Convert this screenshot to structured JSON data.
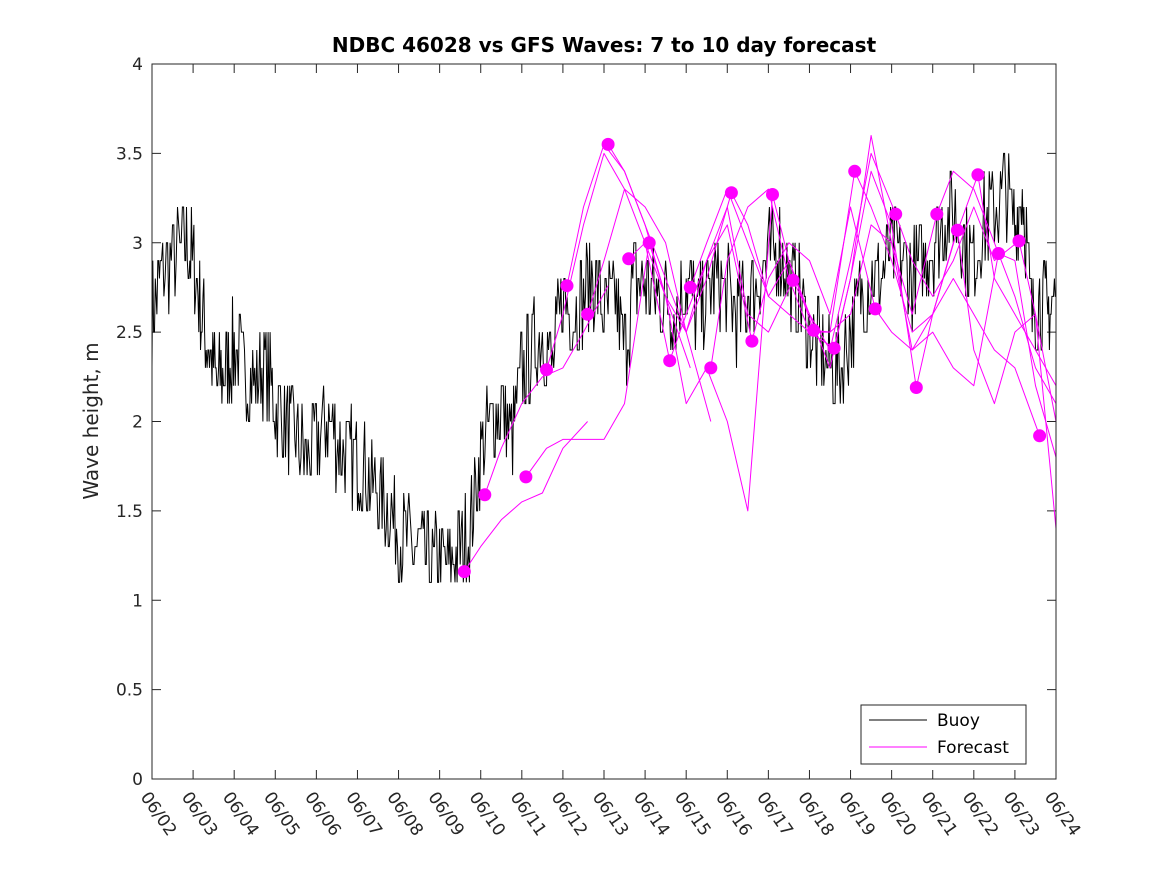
{
  "chart_data": {
    "type": "line",
    "title": "NDBC 46028 vs GFS Waves: 7 to 10 day forecast",
    "xlabel": "",
    "ylabel": "Wave height, m",
    "xlim": [
      0,
      22
    ],
    "ylim": [
      0,
      4
    ],
    "x_tick_labels": [
      "06/02",
      "06/03",
      "06/04",
      "06/05",
      "06/06",
      "06/07",
      "06/08",
      "06/09",
      "06/10",
      "06/11",
      "06/12",
      "06/13",
      "06/14",
      "06/15",
      "06/16",
      "06/17",
      "06/18",
      "06/19",
      "06/20",
      "06/21",
      "06/22",
      "06/23",
      "06/24"
    ],
    "y_ticks": [
      0,
      0.5,
      1,
      1.5,
      2,
      2.5,
      3,
      3.5,
      4
    ],
    "y_tick_labels": [
      "0",
      "0.5",
      "1",
      "1.5",
      "2",
      "2.5",
      "3",
      "3.5",
      "4"
    ],
    "legend_position": "bottom-right",
    "colors": {
      "buoy": "#000000",
      "forecast": "#ff00ff"
    },
    "series": [
      {
        "name": "Buoy",
        "color": "#000000",
        "x": [
          0,
          0.2,
          0.5,
          0.8,
          1.0,
          1.2,
          1.4,
          1.6,
          1.8,
          2.0,
          2.25,
          2.5,
          2.75,
          3.0,
          3.25,
          3.5,
          3.75,
          4.0,
          4.25,
          4.5,
          4.75,
          5.0,
          5.25,
          5.5,
          5.75,
          6.0,
          6.25,
          6.5,
          6.75,
          7.0,
          7.25,
          7.5,
          7.75,
          8.0,
          8.25,
          8.5,
          8.75,
          9.0,
          9.25,
          9.5,
          9.75,
          10.0,
          10.25,
          10.5,
          10.75,
          11.0,
          11.25,
          11.5,
          11.75,
          12.0,
          12.25,
          12.5,
          12.75,
          13.0,
          13.25,
          13.5,
          13.75,
          14.0,
          14.25,
          14.5,
          14.75,
          15.0,
          15.25,
          15.5,
          15.75,
          16.0,
          16.25,
          16.5,
          16.75,
          17.0,
          17.25,
          17.5,
          17.75,
          18.0,
          18.25,
          18.5,
          18.75,
          19.0,
          19.25,
          19.5,
          19.75,
          20.0,
          20.25,
          20.5,
          20.75,
          21.0,
          21.2,
          21.4,
          21.6,
          21.8,
          22.0
        ],
        "values": [
          2.6,
          2.8,
          2.9,
          3.0,
          2.9,
          2.6,
          2.4,
          2.2,
          2.3,
          2.4,
          2.3,
          2.2,
          2.3,
          2.1,
          2.0,
          1.9,
          1.8,
          1.9,
          2.0,
          1.9,
          1.8,
          1.8,
          1.7,
          1.6,
          1.5,
          1.4,
          1.3,
          1.3,
          1.2,
          1.2,
          1.2,
          1.3,
          1.4,
          1.8,
          2.0,
          2.1,
          1.9,
          2.3,
          2.4,
          2.5,
          2.3,
          2.7,
          2.6,
          2.7,
          2.8,
          2.6,
          2.7,
          2.4,
          2.8,
          2.8,
          2.7,
          2.7,
          2.6,
          2.8,
          2.6,
          2.7,
          2.8,
          2.7,
          2.6,
          2.7,
          2.8,
          2.9,
          3.0,
          2.8,
          2.7,
          2.5,
          2.4,
          2.3,
          2.3,
          2.5,
          2.7,
          2.8,
          2.8,
          3.0,
          2.9,
          2.8,
          2.9,
          3.0,
          3.1,
          3.2,
          3.0,
          2.9,
          3.1,
          3.2,
          3.3,
          3.1,
          3.3,
          2.6,
          2.7,
          2.6,
          2.7
        ]
      },
      {
        "name": "Forecast",
        "color": "#ff00ff",
        "lines": [
          {
            "x": [
              7.6,
              8.0,
              8.5,
              9.0,
              9.5,
              10.0,
              10.6
            ],
            "values": [
              1.16,
              1.3,
              1.45,
              1.55,
              1.6,
              1.85,
              2.0
            ]
          },
          {
            "x": [
              8.1,
              8.5,
              9.0,
              9.5,
              10.0,
              10.5,
              11.1
            ],
            "values": [
              1.59,
              1.85,
              2.1,
              2.25,
              2.3,
              2.5,
              2.76
            ]
          },
          {
            "x": [
              9.1,
              9.6,
              10.0,
              10.5,
              11.0,
              11.5,
              12.1
            ],
            "values": [
              1.69,
              1.85,
              1.9,
              1.9,
              1.9,
              2.1,
              3.0
            ]
          },
          {
            "x": [
              9.6,
              10.0,
              10.5,
              11.0,
              11.5,
              12.0,
              12.6
            ],
            "values": [
              2.29,
              2.6,
              3.1,
              3.5,
              3.3,
              3.0,
              2.34
            ]
          },
          {
            "x": [
              10.1,
              10.5,
              11.0,
              11.5,
              12.0,
              12.5,
              13.1
            ],
            "values": [
              2.76,
              3.2,
              3.55,
              3.4,
              3.1,
              2.7,
              2.3
            ]
          },
          {
            "x": [
              10.6,
              11.0,
              11.5,
              12.0,
              12.5,
              13.0,
              13.6
            ],
            "values": [
              2.6,
              2.9,
              3.3,
              3.2,
              3.0,
              2.5,
              2.0
            ]
          },
          {
            "x": [
              11.1,
              11.5,
              12.0,
              12.5,
              13.0,
              13.5,
              14.1
            ],
            "values": [
              3.55,
              3.4,
              3.1,
              2.8,
              2.5,
              2.8,
              3.28
            ]
          },
          {
            "x": [
              11.6,
              12.0,
              12.5,
              13.0,
              13.5,
              14.0,
              14.6
            ],
            "values": [
              2.91,
              3.0,
              2.7,
              2.5,
              2.9,
              3.1,
              2.45
            ]
          },
          {
            "x": [
              12.1,
              12.5,
              13.0,
              13.5,
              14.0,
              14.5,
              15.1
            ],
            "values": [
              3.0,
              2.7,
              2.1,
              2.3,
              2.0,
              1.5,
              3.27
            ]
          },
          {
            "x": [
              12.6,
              13.0,
              13.5,
              14.0,
              14.5,
              15.0,
              15.6
            ],
            "values": [
              2.34,
              2.6,
              2.9,
              3.2,
              2.6,
              2.5,
              2.79
            ]
          },
          {
            "x": [
              13.1,
              13.5,
              14.0,
              14.5,
              15.0,
              15.5,
              16.1
            ],
            "values": [
              2.75,
              3.0,
              3.3,
              3.0,
              2.7,
              2.9,
              2.51
            ]
          },
          {
            "x": [
              13.6,
              14.0,
              14.5,
              15.0,
              15.5,
              16.0,
              16.6
            ],
            "values": [
              2.3,
              2.9,
              3.2,
              3.3,
              2.8,
              2.5,
              2.41
            ]
          },
          {
            "x": [
              14.1,
              14.5,
              15.0,
              15.5,
              16.0,
              16.5,
              17.1
            ],
            "values": [
              3.28,
              3.1,
              2.7,
              2.6,
              2.5,
              2.5,
              3.4
            ]
          },
          {
            "x": [
              14.6,
              15.0,
              15.5,
              16.0,
              16.5,
              17.0,
              17.6
            ],
            "values": [
              2.45,
              2.8,
              3.0,
              2.9,
              2.6,
              3.2,
              2.63
            ]
          },
          {
            "x": [
              15.1,
              15.5,
              16.0,
              16.5,
              17.0,
              17.5,
              18.1
            ],
            "values": [
              3.27,
              2.9,
              2.6,
              2.4,
              2.9,
              3.5,
              3.16
            ]
          },
          {
            "x": [
              15.6,
              16.0,
              16.5,
              17.0,
              17.5,
              18.0,
              18.6
            ],
            "values": [
              2.79,
              2.6,
              2.3,
              2.8,
              3.4,
              3.1,
              2.19
            ]
          },
          {
            "x": [
              16.1,
              16.5,
              17.0,
              17.5,
              18.0,
              18.5,
              19.1
            ],
            "values": [
              2.51,
              2.5,
              2.6,
              3.1,
              3.0,
              2.6,
              3.16
            ]
          },
          {
            "x": [
              16.6,
              17.0,
              17.5,
              18.0,
              18.5,
              19.0,
              19.6
            ],
            "values": [
              2.41,
              2.8,
              3.6,
              3.0,
              2.4,
              2.6,
              3.07
            ]
          },
          {
            "x": [
              17.1,
              17.5,
              18.0,
              18.5,
              19.0,
              19.5,
              20.1
            ],
            "values": [
              3.4,
              3.2,
              2.9,
              2.5,
              2.6,
              3.0,
              3.38
            ]
          },
          {
            "x": [
              17.6,
              18.0,
              18.5,
              19.0,
              19.5,
              20.0,
              20.6
            ],
            "values": [
              2.63,
              2.5,
              2.4,
              2.5,
              2.3,
              2.2,
              2.94
            ]
          },
          {
            "x": [
              18.1,
              18.5,
              19.0,
              19.5,
              20.0,
              20.5,
              21.1
            ],
            "values": [
              3.16,
              2.9,
              2.7,
              2.9,
              3.2,
              2.9,
              3.01
            ]
          },
          {
            "x": [
              18.6,
              19.0,
              19.5,
              20.0,
              20.5,
              21.0,
              21.6
            ],
            "values": [
              2.19,
              2.6,
              2.8,
              2.6,
              2.4,
              2.3,
              1.92
            ]
          },
          {
            "x": [
              19.1,
              19.5,
              20.0,
              20.5,
              21.0,
              21.5,
              22.0
            ],
            "values": [
              3.16,
              3.4,
              3.3,
              3.0,
              2.7,
              2.3,
              2.1
            ]
          },
          {
            "x": [
              19.6,
              20.0,
              20.5,
              21.0,
              21.5,
              22.0
            ],
            "values": [
              3.07,
              2.4,
              2.1,
              2.5,
              2.6,
              2.0
            ]
          },
          {
            "x": [
              20.1,
              20.5,
              21.0,
              21.5,
              22.0
            ],
            "values": [
              3.38,
              2.8,
              2.6,
              2.4,
              2.2
            ]
          },
          {
            "x": [
              20.6,
              21.0,
              21.5,
              22.0
            ],
            "values": [
              2.94,
              2.9,
              2.2,
              1.8
            ]
          },
          {
            "x": [
              21.1,
              21.5,
              22.0
            ],
            "values": [
              3.01,
              2.6,
              1.4
            ]
          }
        ],
        "markers": {
          "x": [
            7.6,
            8.1,
            9.1,
            9.6,
            10.1,
            10.6,
            11.1,
            11.6,
            12.1,
            12.6,
            13.1,
            13.6,
            14.1,
            14.6,
            15.1,
            15.6,
            16.1,
            16.6,
            17.1,
            17.6,
            18.1,
            18.6,
            19.1,
            19.6,
            20.1,
            20.6,
            21.1,
            21.6
          ],
          "values": [
            1.16,
            1.59,
            1.69,
            2.29,
            2.76,
            2.6,
            3.55,
            2.91,
            3.0,
            2.34,
            2.75,
            2.3,
            3.28,
            2.45,
            3.27,
            2.79,
            2.51,
            2.41,
            3.4,
            2.63,
            3.16,
            2.19,
            3.16,
            3.07,
            3.38,
            2.94,
            3.01,
            1.92
          ]
        }
      }
    ]
  }
}
